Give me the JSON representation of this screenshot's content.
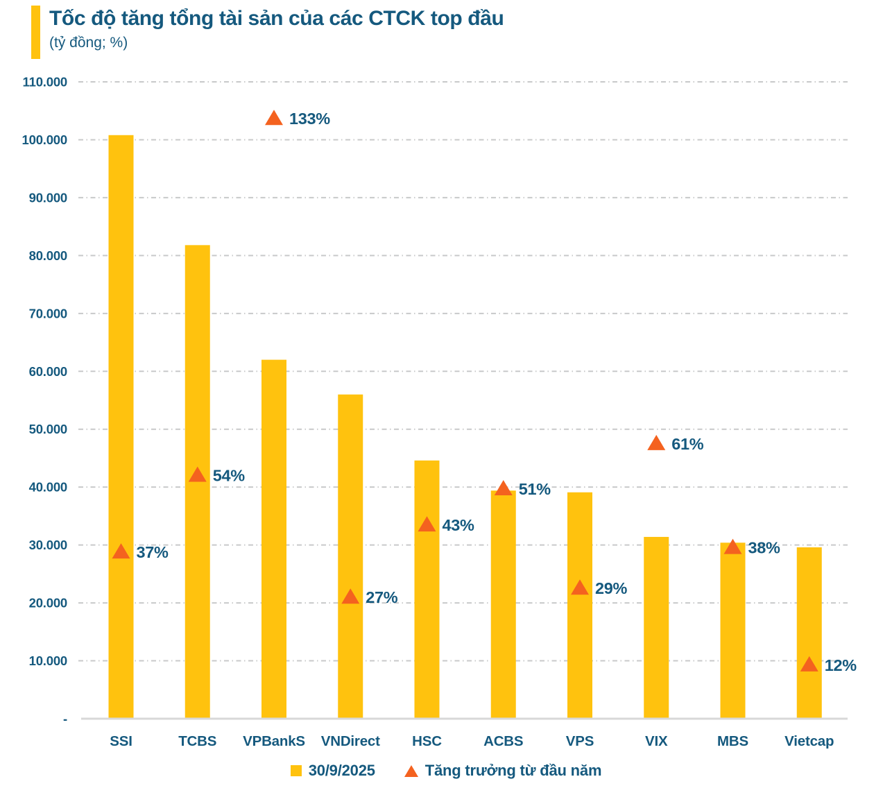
{
  "header": {
    "title": "Tốc độ tăng tổng tài sản của các CTCK top đầu",
    "subtitle": "(tỷ đồng; %)"
  },
  "chart_data": {
    "type": "bar",
    "title": "Tốc độ tăng tổng tài sản của các CTCK top đầu",
    "subtitle": "(tỷ đồng; %)",
    "unit": "tỷ đồng; %",
    "categories": [
      "SSI",
      "TCBS",
      "VPBankS",
      "VNDirect",
      "HSC",
      "ACBS",
      "VPS",
      "VIX",
      "MBS",
      "Vietcap"
    ],
    "series": [
      {
        "name": "30/9/2025",
        "type": "bar",
        "color": "#FFC20E",
        "values": [
          100800,
          81800,
          62000,
          56000,
          44600,
          39400,
          39100,
          31400,
          30400,
          29600
        ]
      },
      {
        "name": "Tăng trưởng từ đầu năm",
        "type": "triangle-marker",
        "color": "#F4621F",
        "values_pct": [
          37,
          54,
          133,
          27,
          43,
          51,
          29,
          61,
          38,
          12
        ],
        "labels": [
          "37%",
          "54%",
          "133%",
          "27%",
          "43%",
          "51%",
          "29%",
          "61%",
          "38%",
          "12%"
        ]
      }
    ],
    "y_axis": {
      "min": 0,
      "max": 110000,
      "step": 10000,
      "tick_labels": [
        "-",
        "10.000",
        "20.000",
        "30.000",
        "40.000",
        "50.000",
        "60.000",
        "70.000",
        "80.000",
        "90.000",
        "100.000",
        "110.000"
      ]
    },
    "marker_value_per_pct": 780,
    "grid": "horizontal-dash-dot",
    "legend_position": "bottom-center",
    "colors": {
      "bar": "#FFC20E",
      "marker": "#F4621F",
      "text": "#15597E",
      "grid": "#C8C9CA",
      "axis_line": "#D8D8D8"
    }
  },
  "legend": {
    "items": [
      {
        "label": "30/9/2025",
        "marker": "square",
        "color": "#FFC20E"
      },
      {
        "label": "Tăng trưởng từ đầu năm",
        "marker": "triangle",
        "color": "#F4621F"
      }
    ]
  }
}
